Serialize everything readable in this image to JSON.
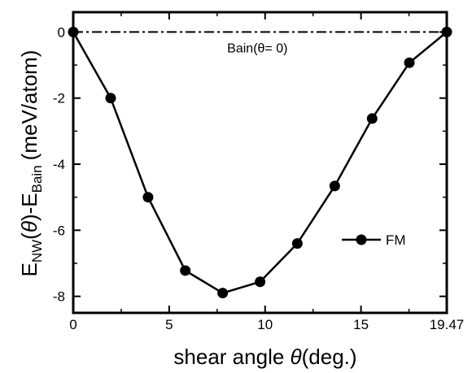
{
  "chart_data": {
    "type": "line",
    "title": "",
    "xlabel": "shear angle θ (deg.)",
    "ylabel": "E_NW(θ)-E_Bain (meV/atom)",
    "xlim": [
      0,
      19.47
    ],
    "ylim": [
      -8.5,
      0.6
    ],
    "x_ticks": [
      0,
      5,
      10,
      15,
      19.47
    ],
    "x_tick_labels": [
      "0",
      "5",
      "10",
      "15",
      "19.47"
    ],
    "y_ticks": [
      0,
      -2,
      -4,
      -6,
      -8
    ],
    "y_tick_labels": [
      "0",
      "-2",
      "-4",
      "-6",
      "-8"
    ],
    "grid": false,
    "legend_position": "right",
    "series": [
      {
        "name": "FM",
        "x": [
          0,
          1.95,
          3.9,
          5.84,
          7.79,
          9.74,
          11.68,
          13.63,
          15.58,
          17.52,
          19.47
        ],
        "y": [
          0,
          -2.0,
          -5.0,
          -7.22,
          -7.9,
          -7.56,
          -6.4,
          -4.66,
          -2.62,
          -0.93,
          0
        ]
      }
    ],
    "reference_line": {
      "y": 0,
      "label": "Bain(θ= 0)"
    }
  }
}
